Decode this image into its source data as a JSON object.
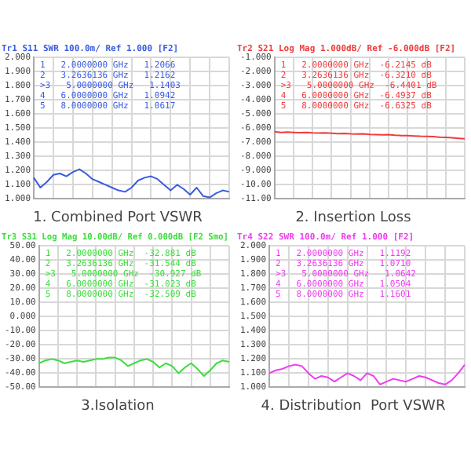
{
  "chart_data": [
    {
      "type": "line",
      "title": "1. Combined Port VSWR",
      "subtitle": "Tr1 S11 SWR 100.0m/ Ref 1.000 [F2]",
      "color": "#3a5ce0",
      "grid": true,
      "legend": false,
      "marker": "none",
      "line_style": "solid",
      "annotations": [
        "1   2.0000000 GHz   1.2066",
        "2   3.2636136 GHz   1.2162",
        ">3   5.0000000 GHz   1.1403",
        "4   6.0000000 GHz   1.0942",
        "5   8.0000000 GHz   1.0617"
      ],
      "categories": [
        null,
        null,
        null,
        null,
        null,
        null,
        null,
        null,
        null,
        null,
        null,
        null,
        null,
        null,
        null,
        null,
        null,
        null,
        null,
        null,
        null,
        null,
        null,
        null,
        null,
        null,
        null,
        null,
        null,
        null,
        null
      ],
      "values": [
        1.15,
        1.08,
        1.12,
        1.17,
        1.18,
        1.16,
        1.19,
        1.21,
        1.18,
        1.14,
        1.12,
        1.1,
        1.08,
        1.06,
        1.05,
        1.08,
        1.13,
        1.15,
        1.16,
        1.14,
        1.1,
        1.06,
        1.1,
        1.07,
        1.03,
        1.08,
        1.02,
        1.01,
        1.04,
        1.06,
        1.05
      ],
      "ylim": [
        1,
        2
      ],
      "yticks": [
        {
          "value": 1,
          "label": "1.000"
        },
        {
          "value": 1.1,
          "label": "1.100"
        },
        {
          "value": 1.2,
          "label": "1.200"
        },
        {
          "value": 1.3,
          "label": "1.300"
        },
        {
          "value": 1.4,
          "label": "1.400"
        },
        {
          "value": 1.5,
          "label": "1.500"
        },
        {
          "value": 1.6,
          "label": "1.600"
        },
        {
          "value": 1.7,
          "label": "1.700"
        },
        {
          "value": 1.8,
          "label": "1.800"
        },
        {
          "value": 1.9,
          "label": "1.900"
        },
        {
          "value": 2,
          "label": "2.000"
        }
      ]
    },
    {
      "type": "line",
      "title": "2. Insertion Loss",
      "subtitle": "Tr2 S21 Log Mag 1.000dB/ Ref -6.000dB [F2]",
      "color": "#f03c3c",
      "grid": true,
      "legend": false,
      "marker": "none",
      "line_style": "solid",
      "annotations": [
        "1   2.0000000 GHz  -6.2145 dB",
        "2   3.2636136 GHz  -6.3210 dB",
        ">3   5.0000000 GHz  -6.4401 dB",
        "4   6.0000000 GHz  -6.4937 dB",
        "5   8.0000000 GHz  -6.6325 dB"
      ],
      "categories": [
        null,
        null,
        null,
        null,
        null,
        null,
        null,
        null,
        null,
        null,
        null,
        null,
        null,
        null,
        null,
        null,
        null,
        null,
        null,
        null,
        null,
        null,
        null,
        null,
        null,
        null,
        null,
        null,
        null,
        null,
        null
      ],
      "values": [
        -6.25,
        -6.3,
        -6.28,
        -6.3,
        -6.32,
        -6.3,
        -6.33,
        -6.35,
        -6.33,
        -6.36,
        -6.38,
        -6.37,
        -6.4,
        -6.42,
        -6.4,
        -6.44,
        -6.45,
        -6.47,
        -6.46,
        -6.5,
        -6.52,
        -6.53,
        -6.55,
        -6.57,
        -6.58,
        -6.6,
        -6.63,
        -6.65,
        -6.68,
        -6.72,
        -6.75
      ],
      "ylim": [
        -11,
        -1
      ],
      "yticks": [
        {
          "value": -1,
          "label": "-1.000"
        },
        {
          "value": -2,
          "label": "-2.000"
        },
        {
          "value": -3,
          "label": "-3.000"
        },
        {
          "value": -4,
          "label": "-4.000"
        },
        {
          "value": -5,
          "label": "-5.000"
        },
        {
          "value": -6,
          "label": "-6.000"
        },
        {
          "value": -7,
          "label": "-7.000"
        },
        {
          "value": -8,
          "label": "-8.000"
        },
        {
          "value": -9,
          "label": "-9.000"
        },
        {
          "value": -10,
          "label": "-10.00"
        },
        {
          "value": -11,
          "label": "-11.00"
        }
      ]
    },
    {
      "type": "line",
      "title": "3.Isolation",
      "subtitle": "Tr3 S31 Log Mag 10.00dB/ Ref 0.000dB [F2 Smo]",
      "color": "#3cdc3c",
      "grid": true,
      "legend": false,
      "marker": "none",
      "line_style": "solid",
      "annotations": [
        "1   2.0000000 GHz  -32.881 dB",
        "2   3.2636136 GHz  -31.544 dB",
        ">3   5.0000000 GHz  -30.927 dB",
        "4   6.0000000 GHz  -31.023 dB",
        "5   8.0000000 GHz  -32.509 dB"
      ],
      "categories": [
        null,
        null,
        null,
        null,
        null,
        null,
        null,
        null,
        null,
        null,
        null,
        null,
        null,
        null,
        null,
        null,
        null,
        null,
        null,
        null,
        null,
        null,
        null,
        null,
        null,
        null,
        null,
        null,
        null,
        null,
        null
      ],
      "values": [
        -33,
        -31,
        -30,
        -31,
        -33,
        -32,
        -31,
        -32,
        -31,
        -30,
        -30,
        -29,
        -29,
        -31,
        -35,
        -33,
        -31,
        -30,
        -32,
        -36,
        -33,
        -35,
        -40,
        -36,
        -33,
        -37,
        -42,
        -38,
        -33,
        -31,
        -32
      ],
      "ylim": [
        -50,
        50
      ],
      "yticks": [
        {
          "value": -50,
          "label": "-50.00"
        },
        {
          "value": -40,
          "label": "-40.00"
        },
        {
          "value": -30,
          "label": "-30.00"
        },
        {
          "value": -20,
          "label": "-20.00"
        },
        {
          "value": -10,
          "label": "-10.00"
        },
        {
          "value": 0,
          "label": "0.000"
        },
        {
          "value": 10,
          "label": "10.00"
        },
        {
          "value": 20,
          "label": "20.00"
        },
        {
          "value": 30,
          "label": "30.00"
        },
        {
          "value": 40,
          "label": "40.00"
        },
        {
          "value": 50,
          "label": "50.00"
        }
      ]
    },
    {
      "type": "line",
      "title": "4. Distribution  Port VSWR",
      "subtitle": "Tr4 S22 SWR 100.0m/ Ref 1.000 [F2]",
      "color": "#f03cf0",
      "grid": true,
      "legend": false,
      "marker": "none",
      "line_style": "solid",
      "annotations": [
        "1   2.0000000 GHz   1.1192",
        "2   3.2636136 GHz   1.0710",
        ">3   5.0000000 GHz   1.0642",
        "4   6.0000000 GHz   1.0504",
        "5   8.0000000 GHz   1.1601"
      ],
      "categories": [
        null,
        null,
        null,
        null,
        null,
        null,
        null,
        null,
        null,
        null,
        null,
        null,
        null,
        null,
        null,
        null,
        null,
        null,
        null,
        null,
        null,
        null,
        null,
        null,
        null,
        null,
        null,
        null,
        null,
        null,
        null
      ],
      "values": [
        1.1,
        1.12,
        1.13,
        1.15,
        1.16,
        1.15,
        1.1,
        1.06,
        1.08,
        1.07,
        1.04,
        1.07,
        1.1,
        1.08,
        1.05,
        1.1,
        1.08,
        1.02,
        1.04,
        1.06,
        1.05,
        1.04,
        1.06,
        1.08,
        1.07,
        1.05,
        1.03,
        1.02,
        1.05,
        1.1,
        1.16
      ],
      "ylim": [
        1,
        2
      ],
      "yticks": [
        {
          "value": 1,
          "label": "1.000"
        },
        {
          "value": 1.1,
          "label": "1.100"
        },
        {
          "value": 1.2,
          "label": "1.200"
        },
        {
          "value": 1.3,
          "label": "1.300"
        },
        {
          "value": 1.4,
          "label": "1.400"
        },
        {
          "value": 1.5,
          "label": "1.500"
        },
        {
          "value": 1.6,
          "label": "1.600"
        },
        {
          "value": 1.7,
          "label": "1.700"
        },
        {
          "value": 1.8,
          "label": "1.800"
        },
        {
          "value": 1.9,
          "label": "1.900"
        },
        {
          "value": 2,
          "label": "2.000"
        }
      ]
    }
  ]
}
